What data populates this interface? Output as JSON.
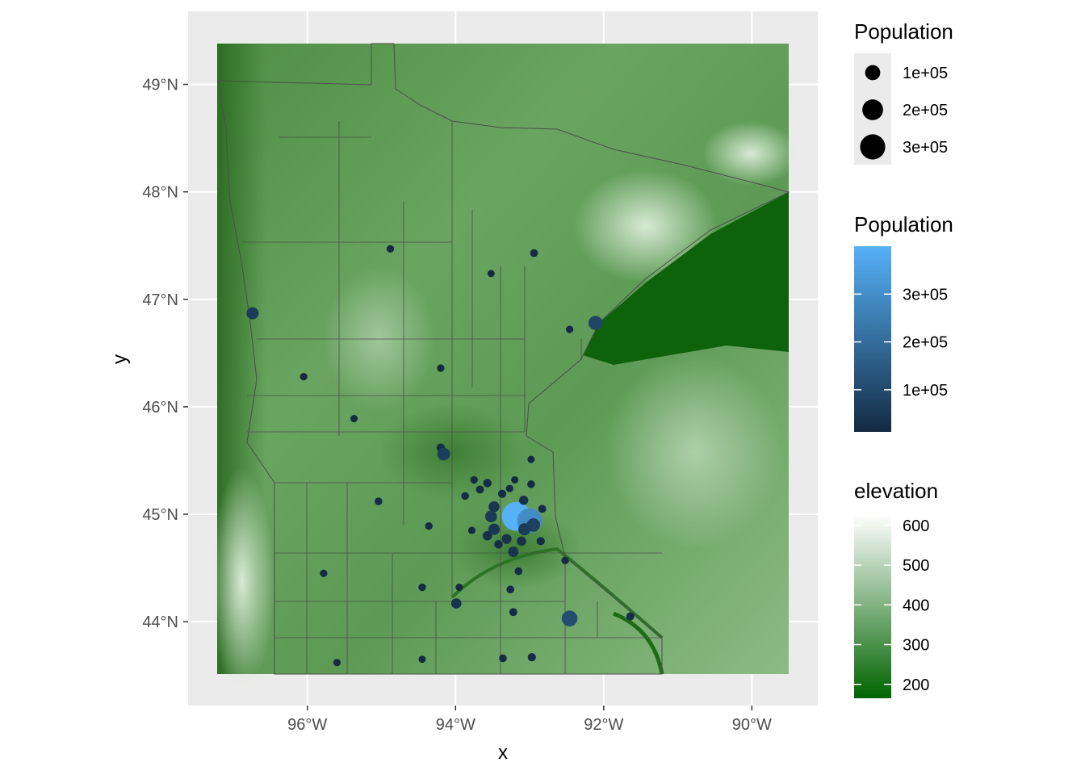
{
  "chart_data": {
    "type": "map",
    "x_label": "x",
    "y_label": "y",
    "xlim": [
      -97.61,
      -89.11
    ],
    "ylim": [
      43.22,
      49.68
    ],
    "xticks": [
      {
        "value": -96,
        "label": "96°W"
      },
      {
        "value": -94,
        "label": "94°W"
      },
      {
        "value": -92,
        "label": "92°W"
      },
      {
        "value": -90,
        "label": "90°W"
      }
    ],
    "yticks": [
      {
        "value": 44,
        "label": "44°N"
      },
      {
        "value": 45,
        "label": "45°N"
      },
      {
        "value": 46,
        "label": "46°N"
      },
      {
        "value": 47,
        "label": "47°N"
      },
      {
        "value": 48,
        "label": "48°N"
      },
      {
        "value": 49,
        "label": "49°N"
      }
    ],
    "grid": true,
    "lon": [
      -96.74,
      -94.88,
      -92.94,
      -93.52,
      -92.11,
      -92.46,
      -96.05,
      -94.2,
      -95.37,
      -94.2,
      -94.16,
      -92.98,
      -95.04,
      -94.36,
      -95.78,
      -94.45,
      -93.99,
      -93.95,
      -93.26,
      -93.22,
      -93.15,
      -92.52,
      -92.46,
      -91.64,
      -95.6,
      -94.45,
      -93.36,
      -92.97,
      -93.18,
      -93.0,
      -93.57,
      -93.75,
      -93.87,
      -93.67,
      -93.37,
      -93.27,
      -93.2,
      -93.08,
      -93.48,
      -93.52,
      -93.48,
      -93.57,
      -93.42,
      -93.31,
      -93.22,
      -93.11,
      -92.98,
      -92.83,
      -92.85,
      -93.78,
      -92.95,
      -93.07
    ],
    "lat": [
      46.87,
      47.47,
      47.43,
      47.24,
      46.78,
      46.72,
      46.28,
      46.36,
      45.89,
      45.62,
      45.56,
      45.51,
      45.12,
      44.89,
      44.45,
      44.32,
      44.17,
      44.32,
      44.3,
      44.09,
      44.47,
      44.57,
      44.03,
      44.05,
      43.62,
      43.65,
      43.66,
      43.67,
      44.98,
      44.94,
      45.29,
      45.32,
      45.17,
      45.23,
      45.19,
      45.24,
      45.32,
      45.13,
      45.07,
      44.98,
      44.86,
      44.8,
      44.72,
      44.77,
      44.65,
      44.75,
      45.28,
      45.05,
      44.75,
      44.85,
      44.9,
      44.86
    ],
    "population": [
      60000,
      14000,
      17000,
      12000,
      86000,
      13000,
      14000,
      14000,
      13000,
      20000,
      67000,
      12000,
      16000,
      14000,
      14000,
      14000,
      38000,
      13000,
      16000,
      18000,
      16000,
      15000,
      110000,
      18000,
      13000,
      12000,
      16000,
      20000,
      400000,
      290000,
      22000,
      15000,
      16000,
      18000,
      20000,
      14000,
      12000,
      28000,
      45000,
      55000,
      50000,
      30000,
      22000,
      35000,
      40000,
      30000,
      16000,
      18000,
      20000,
      13000,
      75000,
      60000
    ],
    "size_legend": {
      "title": "Population",
      "breaks": [
        {
          "value": 100000,
          "label": "1e+05"
        },
        {
          "value": 200000,
          "label": "2e+05"
        },
        {
          "value": 300000,
          "label": "3e+05"
        }
      ]
    },
    "color_legend": {
      "title": "Population",
      "limits": [
        12000,
        400000
      ],
      "low": "#132B43",
      "high": "#56B1F7",
      "breaks": [
        {
          "value": 100000,
          "label": "1e+05"
        },
        {
          "value": 200000,
          "label": "2e+05"
        },
        {
          "value": 300000,
          "label": "3e+05"
        }
      ]
    },
    "elevation_legend": {
      "title": "elevation",
      "limits": [
        165,
        628
      ],
      "low": "#006400",
      "high": "#FFFFFF",
      "breaks": [
        200,
        300,
        400,
        500,
        600
      ]
    }
  }
}
